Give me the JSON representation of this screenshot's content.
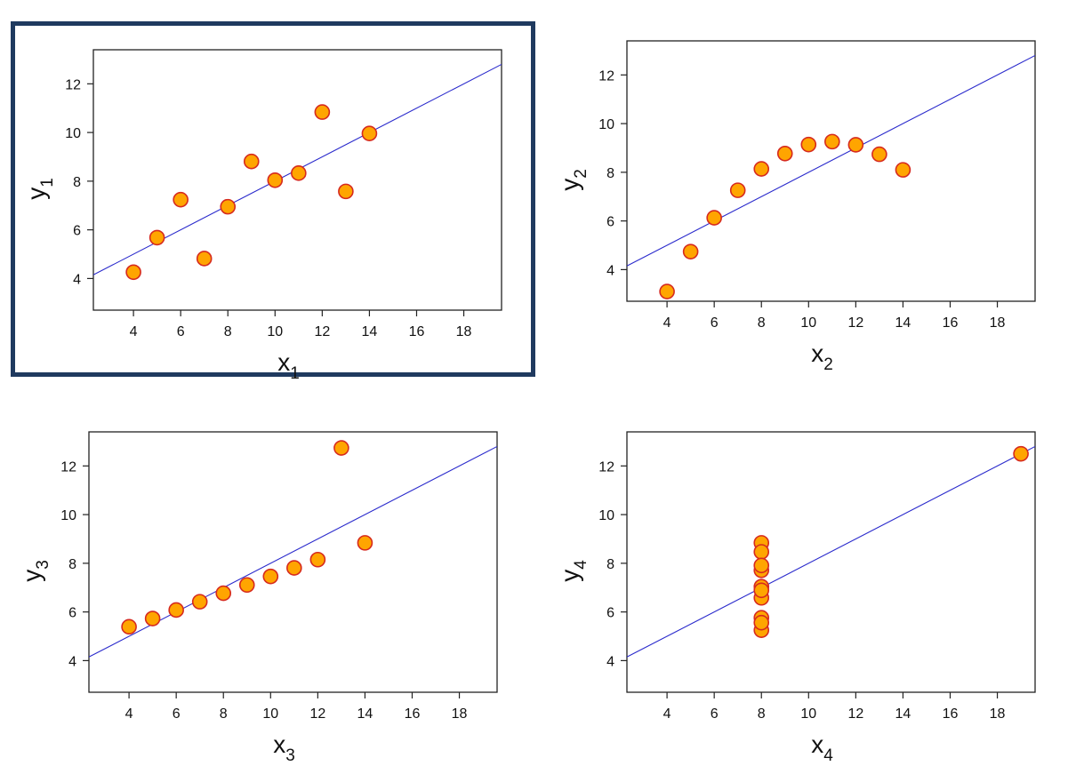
{
  "colors": {
    "point_fill": "#ffa500",
    "point_stroke": "#d62a1e",
    "line": "#2b2bcc",
    "selected_border": "#1f3a5f"
  },
  "chart_data": [
    {
      "type": "scatter",
      "id": "panel-1",
      "selected": true,
      "xlabel": "x",
      "xlabel_sub": "1",
      "ylabel": "y",
      "ylabel_sub": "1",
      "xlim": [
        2.3,
        19.6
      ],
      "ylim": [
        2.7,
        13.4
      ],
      "xticks": [
        4,
        6,
        8,
        10,
        12,
        14,
        16,
        18
      ],
      "yticks": [
        4,
        6,
        8,
        10,
        12
      ],
      "x": [
        10,
        8,
        13,
        9,
        11,
        14,
        6,
        4,
        12,
        7,
        5
      ],
      "y": [
        8.04,
        6.95,
        7.58,
        8.81,
        8.33,
        9.96,
        7.24,
        4.26,
        10.84,
        4.82,
        5.68
      ],
      "fit": {
        "intercept": 3.0,
        "slope": 0.5
      }
    },
    {
      "type": "scatter",
      "id": "panel-2",
      "selected": false,
      "xlabel": "x",
      "xlabel_sub": "2",
      "ylabel": "y",
      "ylabel_sub": "2",
      "xlim": [
        2.3,
        19.6
      ],
      "ylim": [
        2.7,
        13.4
      ],
      "xticks": [
        4,
        6,
        8,
        10,
        12,
        14,
        16,
        18
      ],
      "yticks": [
        4,
        6,
        8,
        10,
        12
      ],
      "x": [
        10,
        8,
        13,
        9,
        11,
        14,
        6,
        4,
        12,
        7,
        5
      ],
      "y": [
        9.14,
        8.14,
        8.74,
        8.77,
        9.26,
        8.1,
        6.13,
        3.1,
        9.13,
        7.26,
        4.74
      ],
      "fit": {
        "intercept": 3.0,
        "slope": 0.5
      }
    },
    {
      "type": "scatter",
      "id": "panel-3",
      "selected": false,
      "xlabel": "x",
      "xlabel_sub": "3",
      "ylabel": "y",
      "ylabel_sub": "3",
      "xlim": [
        2.3,
        19.6
      ],
      "ylim": [
        2.7,
        13.4
      ],
      "xticks": [
        4,
        6,
        8,
        10,
        12,
        14,
        16,
        18
      ],
      "yticks": [
        4,
        6,
        8,
        10,
        12
      ],
      "x": [
        10,
        8,
        13,
        9,
        11,
        14,
        6,
        4,
        12,
        7,
        5
      ],
      "y": [
        7.46,
        6.77,
        12.74,
        7.11,
        7.81,
        8.84,
        6.08,
        5.39,
        8.15,
        6.42,
        5.73
      ],
      "fit": {
        "intercept": 3.0,
        "slope": 0.5
      }
    },
    {
      "type": "scatter",
      "id": "panel-4",
      "selected": false,
      "xlabel": "x",
      "xlabel_sub": "4",
      "ylabel": "y",
      "ylabel_sub": "4",
      "xlim": [
        2.3,
        19.6
      ],
      "ylim": [
        2.7,
        13.4
      ],
      "xticks": [
        4,
        6,
        8,
        10,
        12,
        14,
        16,
        18
      ],
      "yticks": [
        4,
        6,
        8,
        10,
        12
      ],
      "x": [
        8,
        8,
        8,
        8,
        8,
        8,
        8,
        19,
        8,
        8,
        8
      ],
      "y": [
        6.58,
        5.76,
        7.71,
        8.84,
        8.47,
        7.04,
        5.25,
        12.5,
        5.56,
        7.91,
        6.89
      ],
      "fit": {
        "intercept": 3.0,
        "slope": 0.5
      }
    }
  ]
}
